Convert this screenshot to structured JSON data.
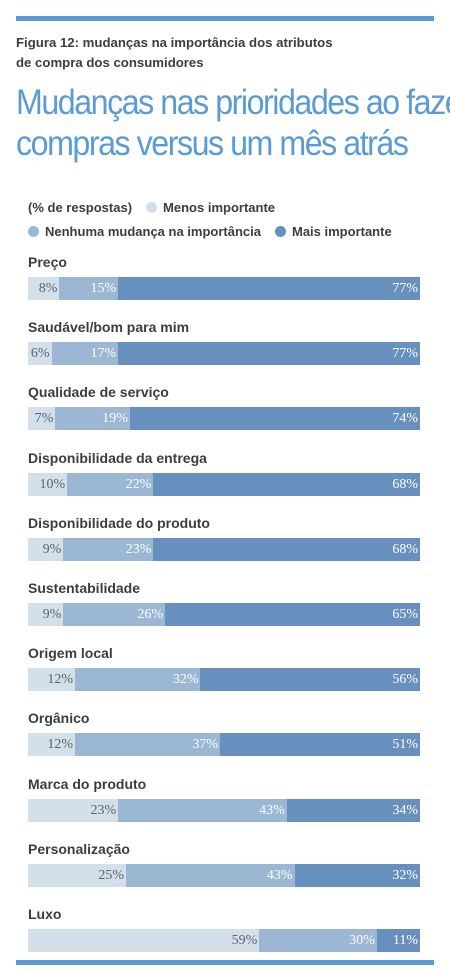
{
  "header": {
    "figure_line1": "Figura 12: mudanças na importância dos atributos",
    "figure_line2": "de compra dos consumidores",
    "title_line1": "Mudanças nas prioridades ao fazer",
    "title_line2": "compras versus um mês atrás"
  },
  "legend": {
    "unit_label": "(% de respostas)",
    "items": [
      {
        "label": "Menos importante",
        "color": "#d3dfe9"
      },
      {
        "label": "Nenhuma mudança na importância",
        "color": "#9bb7d4"
      },
      {
        "label": "Mais importante",
        "color": "#6790be"
      }
    ]
  },
  "colors": {
    "accent": "#5b9bd5",
    "less": "#d3dfe9",
    "nochange": "#9bb7d4",
    "more": "#6790be"
  },
  "chart_data": {
    "type": "bar",
    "orientation": "horizontal-stacked",
    "title": "Mudanças nas prioridades ao fazer compras versus um mês atrás",
    "unit": "(% de respostas)",
    "series": [
      {
        "name": "Menos importante",
        "values": [
          8,
          6,
          7,
          10,
          9,
          9,
          12,
          12,
          23,
          25,
          59
        ]
      },
      {
        "name": "Nenhuma mudança na importância",
        "values": [
          15,
          17,
          19,
          22,
          23,
          26,
          32,
          37,
          43,
          43,
          30
        ]
      },
      {
        "name": "Mais importante",
        "values": [
          77,
          77,
          74,
          68,
          68,
          65,
          56,
          51,
          34,
          32,
          11
        ]
      }
    ],
    "categories": [
      "Preço",
      "Saudável/bom para mim",
      "Qualidade de serviço",
      "Disponibilidade da entrega",
      "Disponibilidade do produto",
      "Sustentabilidade",
      "Origem local",
      "Orgânico",
      "Marca do produto",
      "Personalização",
      "Luxo"
    ],
    "value_suffix": "%",
    "xlim": [
      0,
      100
    ]
  }
}
